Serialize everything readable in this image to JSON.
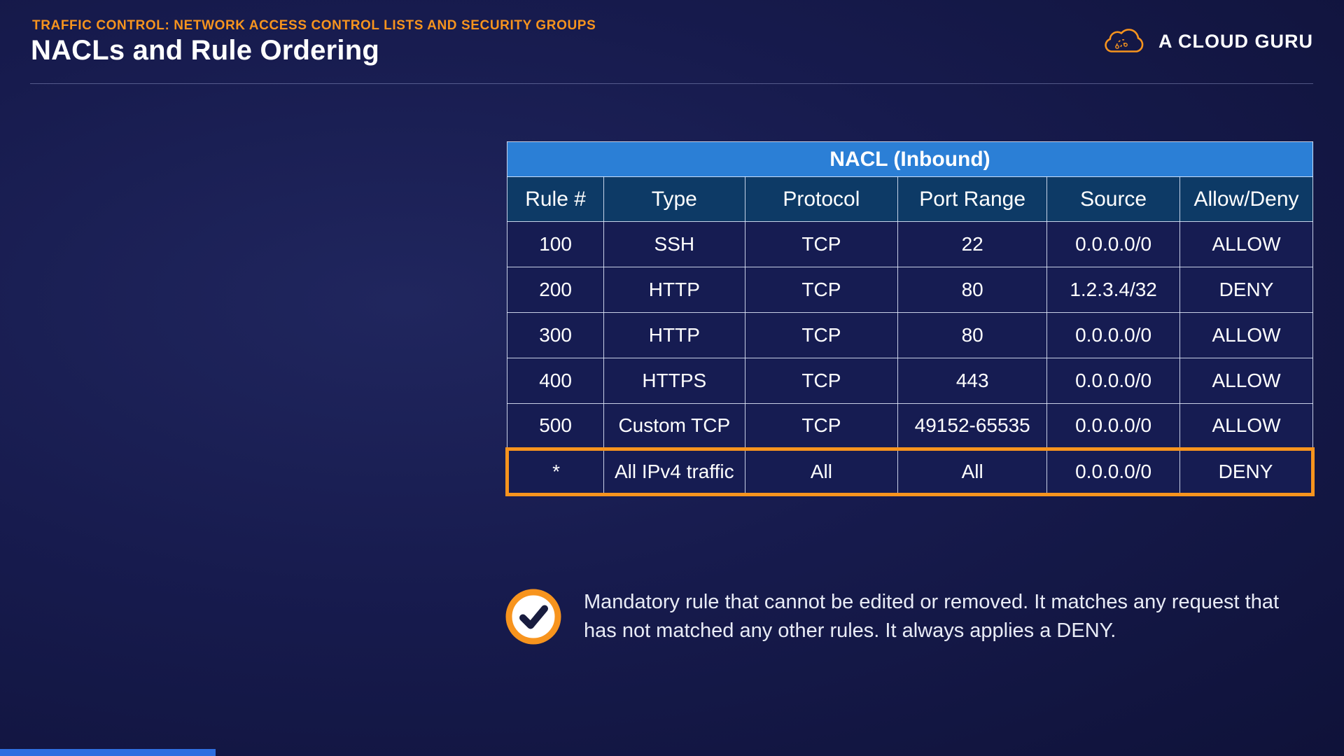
{
  "header": {
    "eyebrow": "TRAFFIC CONTROL: NETWORK ACCESS CONTROL LISTS AND SECURITY GROUPS",
    "title": "NACLs and Rule Ordering",
    "brand": "A CLOUD GURU"
  },
  "table": {
    "title": "NACL (Inbound)",
    "columns": [
      "Rule #",
      "Type",
      "Protocol",
      "Port Range",
      "Source",
      "Allow/Deny"
    ],
    "rows": [
      [
        "100",
        "SSH",
        "TCP",
        "22",
        "0.0.0.0/0",
        "ALLOW"
      ],
      [
        "200",
        "HTTP",
        "TCP",
        "80",
        "1.2.3.4/32",
        "DENY"
      ],
      [
        "300",
        "HTTP",
        "TCP",
        "80",
        "0.0.0.0/0",
        "ALLOW"
      ],
      [
        "400",
        "HTTPS",
        "TCP",
        "443",
        "0.0.0.0/0",
        "ALLOW"
      ],
      [
        "500",
        "Custom TCP",
        "TCP",
        "49152-65535",
        "0.0.0.0/0",
        "ALLOW"
      ],
      [
        "*",
        "All IPv4 traffic",
        "All",
        "All",
        "0.0.0.0/0",
        "DENY"
      ]
    ],
    "highlighted_row_index": 5
  },
  "note": {
    "icon": "check-circle-icon",
    "text": "Mandatory rule that cannot be edited or removed. It matches any request that has not matched any other rules. It always applies a DENY."
  },
  "colors": {
    "accent_orange": "#F7941E",
    "table_title_blue": "#2B7FD6",
    "table_header_blue": "#0D3A66",
    "row_navy": "#161C52",
    "progress_blue": "#2F6FE0"
  }
}
